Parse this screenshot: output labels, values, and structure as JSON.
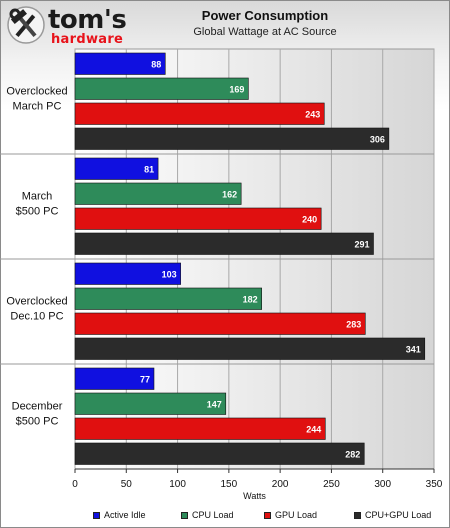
{
  "brand": {
    "line1": "tom's",
    "line2": "hardware"
  },
  "chart_data": {
    "type": "bar",
    "orientation": "horizontal",
    "title": "Power Consumption",
    "subtitle": "Global Wattage at AC Source",
    "xlabel": "Watts",
    "xlim": [
      0,
      350
    ],
    "xticks": [
      0,
      50,
      100,
      150,
      200,
      250,
      300,
      350
    ],
    "grid": true,
    "legend_position": "bottom",
    "categories": [
      "Overclocked March PC",
      "March $500 PC",
      "Overclocked Dec.10 PC",
      "December $500 PC"
    ],
    "category_lines": [
      [
        "Overclocked",
        "March PC"
      ],
      [
        "March",
        "$500 PC"
      ],
      [
        "Overclocked",
        "Dec.10 PC"
      ],
      [
        "December",
        "$500 PC"
      ]
    ],
    "series": [
      {
        "name": "Active Idle",
        "color": "#1010e0",
        "values": [
          88,
          81,
          103,
          77
        ]
      },
      {
        "name": "CPU Load",
        "color": "#2e8b5a",
        "values": [
          169,
          162,
          182,
          147
        ]
      },
      {
        "name": "GPU Load",
        "color": "#e01010",
        "values": [
          243,
          240,
          283,
          244
        ]
      },
      {
        "name": "CPU+GPU Load",
        "color": "#2b2b2b",
        "values": [
          306,
          291,
          341,
          282
        ]
      }
    ]
  }
}
